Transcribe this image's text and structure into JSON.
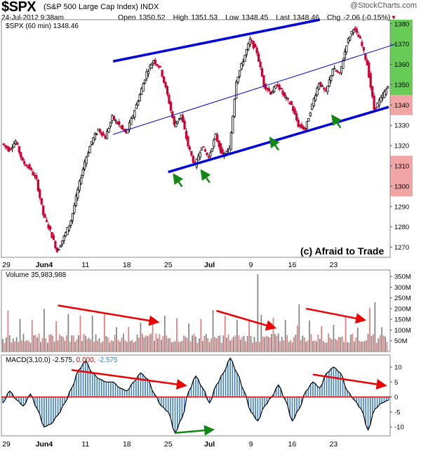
{
  "header": {
    "symbol": "$SPX",
    "name": "(S&P 500 Large Cap Index) INDX",
    "datetime": "24-Jul-2012 9:38am",
    "open_label": "Open",
    "open": "1350.52",
    "high_label": "High",
    "high": "1351.53",
    "low_label": "Low",
    "low": "1348.45",
    "last_label": "Last",
    "last": "1348.46",
    "chg_label": "Chg",
    "chg": "-2.06 (-0.15%)",
    "watermark": "@StockCharts.com"
  },
  "colors": {
    "up": "#000000",
    "down": "#cc0033",
    "trend": "#0000dd",
    "arrow_green": "#118811",
    "arrow_red": "#ee0000",
    "macd_fill": "#3d7fc0"
  },
  "icons": [
    "up-arrow-icon",
    "down-arrow-icon",
    "stockcharts-logo-icon"
  ],
  "chart_data": [
    {
      "type": "candlestick",
      "title": "$SPX (60 min) 1348.46",
      "annotation": "(c) Afraid to Trade",
      "ylim": [
        1265,
        1382
      ],
      "yticks": [
        1270,
        1280,
        1290,
        1300,
        1310,
        1320,
        1330,
        1340,
        1350,
        1360,
        1370,
        1380
      ],
      "price_boxes": [
        {
          "from": 1340,
          "to": 1382,
          "color": "#66cc55"
        },
        {
          "from": 1335,
          "to": 1345,
          "color": "#f2a5a5"
        },
        {
          "from": 1295,
          "to": 1315,
          "color": "#f2a5a5"
        }
      ],
      "x_labels": [
        "29",
        "Jun4",
        "11",
        "18",
        "25",
        "Jul",
        "9",
        "16",
        "23"
      ],
      "keypoints": [
        1321,
        1318,
        1322,
        1312,
        1309,
        1303,
        1286,
        1278,
        1268,
        1275,
        1283,
        1298,
        1312,
        1322,
        1328,
        1324,
        1334,
        1330,
        1326,
        1335,
        1345,
        1356,
        1362,
        1358,
        1345,
        1330,
        1335,
        1320,
        1310,
        1320,
        1314,
        1325,
        1315,
        1318,
        1352,
        1362,
        1372,
        1366,
        1350,
        1346,
        1350,
        1344,
        1340,
        1330,
        1328,
        1340,
        1351,
        1346,
        1358,
        1355,
        1370,
        1378,
        1372,
        1360,
        1338,
        1343,
        1349
      ],
      "trendlines": [
        {
          "name": "upper channel",
          "from": [
            16,
            1361.5
          ],
          "to": [
            46,
            1382
          ]
        },
        {
          "name": "middle line",
          "from": [
            16,
            1325.5
          ],
          "to": [
            57,
            1370
          ]
        },
        {
          "name": "lower channel",
          "from": [
            24,
            1307
          ],
          "to": [
            56,
            1339
          ]
        }
      ],
      "arrows_up": [
        [
          25,
          1306
        ],
        [
          29,
          1308
        ],
        [
          39,
          1324
        ],
        [
          48,
          1335
        ]
      ]
    },
    {
      "type": "bar",
      "title": "Volume 35,983,988",
      "ylim": [
        0,
        380
      ],
      "yticks": [
        50,
        100,
        150,
        200,
        250,
        300,
        350
      ],
      "ytick_labels": [
        "50M",
        "100M",
        "150M",
        "200M",
        "250M",
        "300M",
        "350M"
      ],
      "spikes": {
        "37": 360,
        "43": 220,
        "54": 230
      },
      "trend_arrows": [
        {
          "from": [
            8,
            215
          ],
          "to": [
            22,
            140
          ]
        },
        {
          "from": [
            31,
            190
          ],
          "to": [
            39,
            115
          ]
        },
        {
          "from": [
            44,
            200
          ],
          "to": [
            52,
            150
          ]
        }
      ]
    },
    {
      "type": "area",
      "title": "MACD(3,10,0)",
      "macd_value": "-2.575",
      "signal_value": "0.000",
      "hist_value": "-2.575",
      "ylim": [
        -13,
        14
      ],
      "yticks": [
        -10,
        -5,
        0,
        5,
        10
      ],
      "keypoints": [
        -2,
        2,
        -1,
        -3,
        1,
        -4,
        -10,
        -9,
        -6,
        -2,
        3,
        9,
        12,
        8,
        6,
        5,
        5,
        3,
        2,
        5,
        8,
        6,
        1,
        -3,
        -5,
        -12,
        -7,
        2,
        7,
        3,
        -2,
        4,
        8,
        13,
        8,
        2,
        -5,
        -8,
        -3,
        0,
        4,
        -1,
        -8,
        -4,
        2,
        5,
        3,
        8,
        10,
        8,
        2,
        -1,
        -4,
        -11,
        -4,
        -2,
        -1
      ],
      "red_arrows": [
        {
          "from": [
            10,
            9
          ],
          "to": [
            26,
            4
          ]
        },
        {
          "from": [
            45,
            7.5
          ],
          "to": [
            55,
            4
          ]
        }
      ],
      "green_arrow": {
        "from": [
          25,
          -12
        ],
        "to": [
          30,
          -11
        ]
      },
      "x_labels": [
        "29",
        "Jun4",
        "11",
        "18",
        "25",
        "Jul",
        "9",
        "16",
        "23"
      ]
    }
  ]
}
